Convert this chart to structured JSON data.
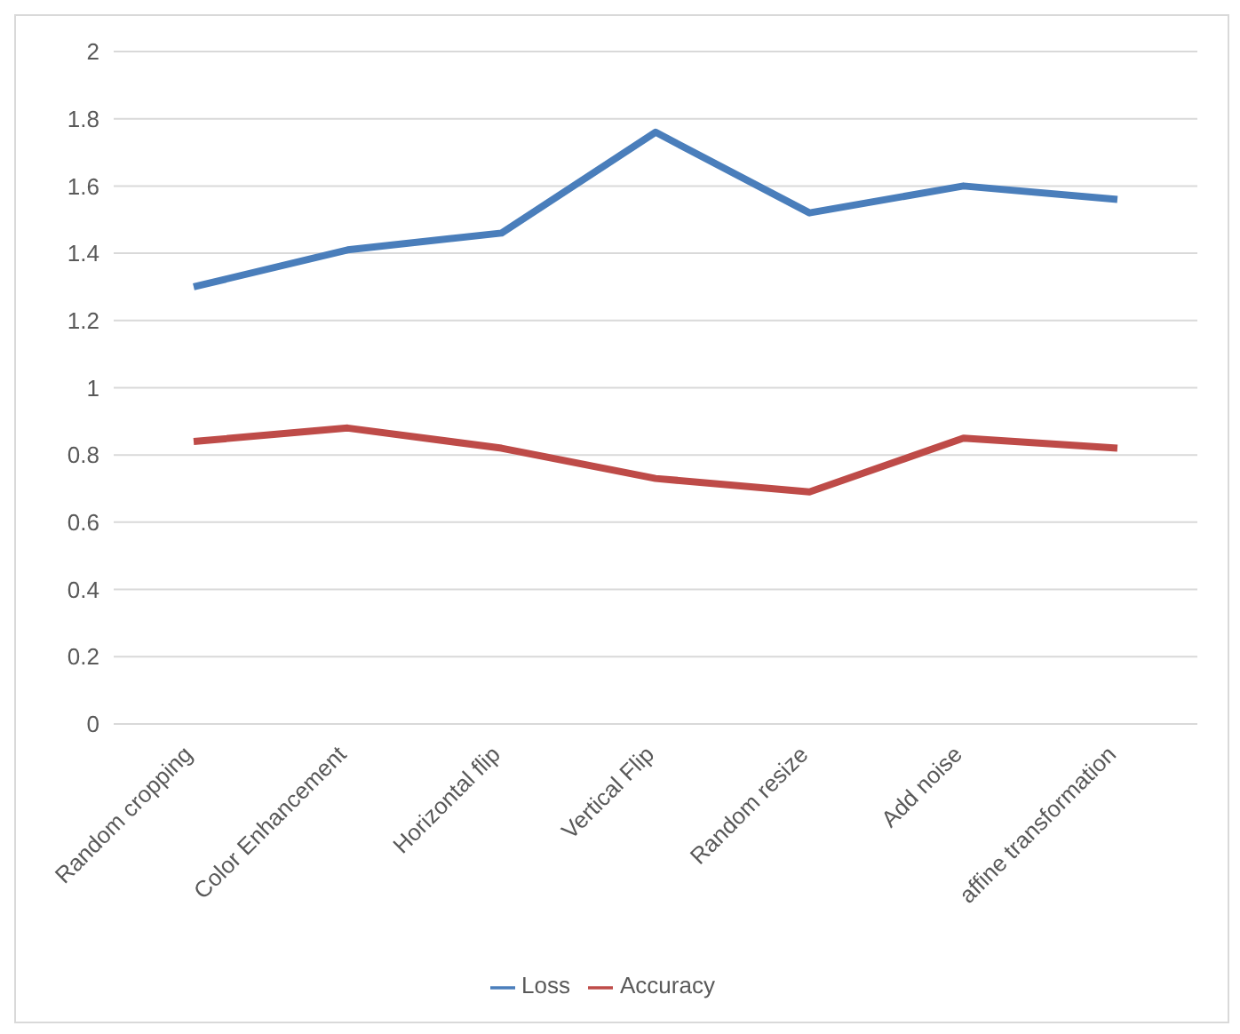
{
  "chart_data": {
    "type": "line",
    "categories": [
      "Random cropping",
      "Color Enhancement",
      "Horizontal flip",
      "Vertical Flip",
      "Random resize",
      "Add noise",
      "affine transformation"
    ],
    "series": [
      {
        "name": "Loss",
        "color": "#4a7ebb",
        "values": [
          1.3,
          1.41,
          1.46,
          1.76,
          1.52,
          1.6,
          1.56
        ]
      },
      {
        "name": "Accuracy",
        "color": "#be4b48",
        "values": [
          0.84,
          0.88,
          0.82,
          0.73,
          0.69,
          0.85,
          0.82
        ]
      }
    ],
    "ylim": [
      0,
      2
    ],
    "yticks": [
      0,
      0.2,
      0.4,
      0.6,
      0.8,
      1,
      1.2,
      1.4,
      1.6,
      1.8,
      2
    ],
    "grid": "y",
    "legend": "bottom",
    "marker": "none",
    "line_style": "solid"
  }
}
